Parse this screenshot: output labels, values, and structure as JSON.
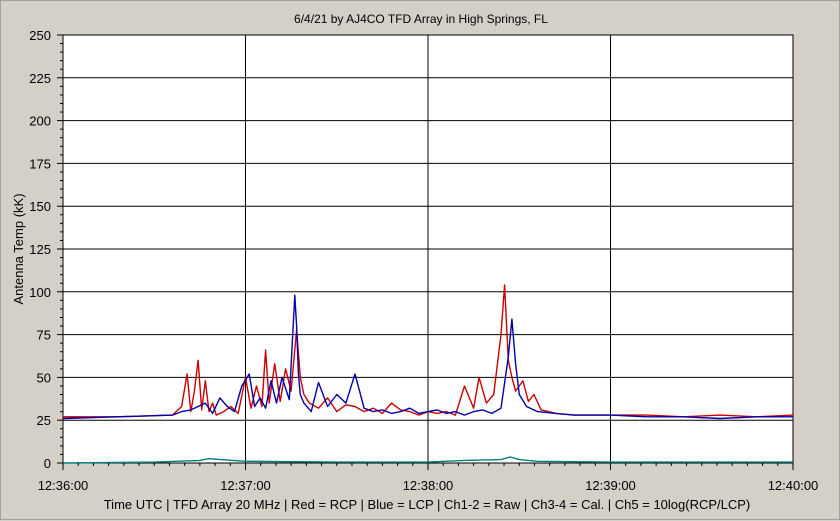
{
  "chart_data": {
    "type": "line",
    "title": "6/4/21  by  AJ4CO TFD Array  in  High Springs, FL",
    "ylabel": "Antenna Temp (kK)",
    "xlabel": "Time UTC | TFD Array 20 MHz | Red = RCP | Blue = LCP | Ch1-2 = Raw | Ch3-4 = Cal. | Ch5 = 10log(RCP/LCP)",
    "x_tick_labels": [
      "12:36:00",
      "12:37:00",
      "12:38:00",
      "12:39:00",
      "12:40:00"
    ],
    "y_tick_labels": [
      "0",
      "25",
      "50",
      "75",
      "100",
      "125",
      "150",
      "175",
      "200",
      "225",
      "250"
    ],
    "xlim_minutes": [
      0,
      4
    ],
    "ylim": [
      0,
      250
    ],
    "grid": true,
    "series": [
      {
        "color": "#cc0000",
        "x": [
          0.0,
          0.3,
          0.6,
          0.65,
          0.68,
          0.7,
          0.72,
          0.74,
          0.76,
          0.78,
          0.8,
          0.82,
          0.84,
          0.88,
          0.92,
          0.96,
          1.0,
          1.03,
          1.06,
          1.09,
          1.11,
          1.13,
          1.16,
          1.19,
          1.22,
          1.25,
          1.28,
          1.3,
          1.32,
          1.35,
          1.4,
          1.45,
          1.5,
          1.55,
          1.6,
          1.65,
          1.7,
          1.75,
          1.8,
          1.85,
          1.9,
          1.95,
          2.0,
          2.05,
          2.1,
          2.15,
          2.2,
          2.25,
          2.28,
          2.32,
          2.36,
          2.4,
          2.42,
          2.44,
          2.46,
          2.48,
          2.5,
          2.52,
          2.55,
          2.58,
          2.62,
          2.66,
          2.7,
          2.8,
          3.0,
          3.2,
          3.4,
          3.6,
          3.8,
          4.0
        ],
        "y": [
          27,
          27,
          28,
          33,
          52,
          30,
          42,
          60,
          31,
          48,
          30,
          35,
          28,
          30,
          33,
          29,
          50,
          32,
          45,
          33,
          66,
          35,
          58,
          36,
          55,
          42,
          78,
          50,
          40,
          35,
          32,
          38,
          30,
          34,
          33,
          30,
          32,
          29,
          35,
          31,
          30,
          28,
          30,
          29,
          30,
          28,
          45,
          32,
          50,
          35,
          40,
          75,
          104,
          60,
          50,
          42,
          45,
          48,
          36,
          40,
          31,
          30,
          29,
          28,
          28,
          28,
          27,
          28,
          27,
          28
        ]
      },
      {
        "color": "#0000aa",
        "x": [
          0.0,
          0.3,
          0.6,
          0.65,
          0.7,
          0.74,
          0.78,
          0.82,
          0.86,
          0.9,
          0.94,
          0.98,
          1.02,
          1.05,
          1.08,
          1.11,
          1.14,
          1.17,
          1.2,
          1.24,
          1.27,
          1.28,
          1.29,
          1.3,
          1.32,
          1.36,
          1.4,
          1.45,
          1.5,
          1.55,
          1.6,
          1.65,
          1.7,
          1.75,
          1.8,
          1.85,
          1.9,
          1.95,
          2.0,
          2.05,
          2.1,
          2.15,
          2.2,
          2.25,
          2.3,
          2.35,
          2.4,
          2.44,
          2.46,
          2.48,
          2.5,
          2.54,
          2.6,
          2.7,
          2.8,
          3.0,
          3.2,
          3.4,
          3.6,
          3.8,
          4.0
        ],
        "y": [
          26,
          27,
          28,
          30,
          31,
          33,
          35,
          29,
          38,
          33,
          30,
          45,
          52,
          33,
          38,
          32,
          48,
          35,
          50,
          37,
          98,
          80,
          52,
          40,
          35,
          30,
          47,
          33,
          40,
          35,
          52,
          32,
          30,
          31,
          29,
          30,
          32,
          29,
          30,
          31,
          29,
          30,
          28,
          30,
          31,
          29,
          32,
          62,
          84,
          58,
          40,
          33,
          30,
          29,
          28,
          28,
          27,
          27,
          26,
          27,
          27
        ]
      },
      {
        "color": "#008080",
        "x": [
          0.0,
          0.5,
          0.75,
          0.8,
          1.0,
          1.5,
          2.0,
          2.2,
          2.4,
          2.45,
          2.5,
          2.6,
          3.0,
          3.5,
          4.0
        ],
        "y": [
          0,
          0.5,
          1.5,
          2.5,
          1,
          0.5,
          0.5,
          1.5,
          2,
          3.5,
          2,
          1,
          0.5,
          0.5,
          0.5
        ]
      }
    ]
  }
}
